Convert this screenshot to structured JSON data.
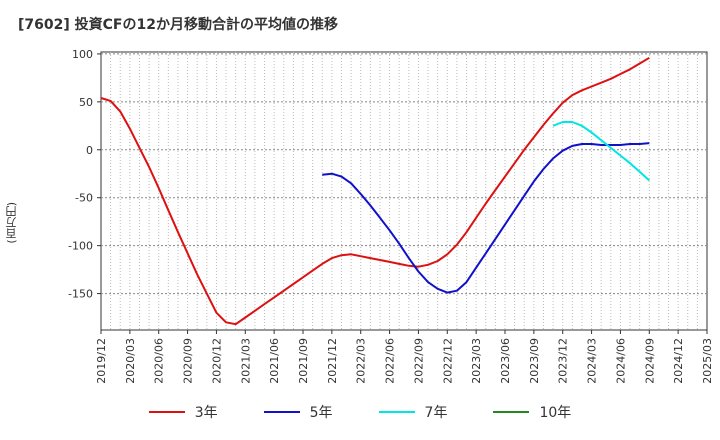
{
  "header": {
    "title": "[7602]  投資CFの12か月移動合計の平均値の推移"
  },
  "axis": {
    "y_unit": "(百万円)"
  },
  "colors": {
    "grid": "#bbbbbb",
    "axis": "#333333"
  },
  "chart_data": {
    "type": "line",
    "title": "[7602]  投資CFの12か月移動合計の平均値の推移",
    "ylabel": "(百万円)",
    "xlabel": "",
    "ylim": [
      -188,
      102
    ],
    "yticks": [
      100,
      50,
      0,
      -50,
      -100,
      -150
    ],
    "x_range": [
      "2019-12",
      "2025-03"
    ],
    "xticks": [
      "2019/12",
      "2020/03",
      "2020/06",
      "2020/09",
      "2020/12",
      "2021/03",
      "2021/06",
      "2021/09",
      "2021/12",
      "2022/03",
      "2022/06",
      "2022/09",
      "2022/12",
      "2023/03",
      "2023/06",
      "2023/09",
      "2023/12",
      "2024/03",
      "2024/06",
      "2024/09",
      "2024/12",
      "2025/03"
    ],
    "grid": "dotted, vertical every month, horizontal at y ticks",
    "legend_position": "bottom",
    "series": [
      {
        "name": "3年",
        "color": "#dd1111",
        "points": [
          [
            "2019-12",
            54
          ],
          [
            "2020-01",
            51
          ],
          [
            "2020-02",
            40
          ],
          [
            "2020-03",
            22
          ],
          [
            "2020-04",
            2
          ],
          [
            "2020-05",
            -18
          ],
          [
            "2020-06",
            -40
          ],
          [
            "2020-07",
            -63
          ],
          [
            "2020-08",
            -86
          ],
          [
            "2020-09",
            -108
          ],
          [
            "2020-10",
            -130
          ],
          [
            "2020-11",
            -150
          ],
          [
            "2020-12",
            -170
          ],
          [
            "2021-01",
            -180
          ],
          [
            "2021-02",
            -182
          ],
          [
            "2021-03",
            -175
          ],
          [
            "2021-04",
            -168
          ],
          [
            "2021-05",
            -161
          ],
          [
            "2021-06",
            -154
          ],
          [
            "2021-07",
            -147
          ],
          [
            "2021-08",
            -140
          ],
          [
            "2021-09",
            -133
          ],
          [
            "2021-10",
            -126
          ],
          [
            "2021-11",
            -119
          ],
          [
            "2021-12",
            -113
          ],
          [
            "2022-01",
            -110
          ],
          [
            "2022-02",
            -109
          ],
          [
            "2022-03",
            -111
          ],
          [
            "2022-04",
            -113
          ],
          [
            "2022-05",
            -115
          ],
          [
            "2022-06",
            -117
          ],
          [
            "2022-07",
            -119
          ],
          [
            "2022-08",
            -121
          ],
          [
            "2022-09",
            -122
          ],
          [
            "2022-10",
            -120
          ],
          [
            "2022-11",
            -116
          ],
          [
            "2022-12",
            -109
          ],
          [
            "2023-01",
            -99
          ],
          [
            "2023-02",
            -86
          ],
          [
            "2023-03",
            -71
          ],
          [
            "2023-04",
            -56
          ],
          [
            "2023-05",
            -42
          ],
          [
            "2023-06",
            -28
          ],
          [
            "2023-07",
            -14
          ],
          [
            "2023-08",
            0
          ],
          [
            "2023-09",
            13
          ],
          [
            "2023-10",
            26
          ],
          [
            "2023-11",
            38
          ],
          [
            "2023-12",
            49
          ],
          [
            "2024-01",
            57
          ],
          [
            "2024-02",
            62
          ],
          [
            "2024-03",
            66
          ],
          [
            "2024-04",
            70
          ],
          [
            "2024-05",
            74
          ],
          [
            "2024-06",
            79
          ],
          [
            "2024-07",
            84
          ],
          [
            "2024-08",
            90
          ],
          [
            "2024-09",
            96
          ]
        ]
      },
      {
        "name": "5年",
        "color": "#1111cc",
        "points": [
          [
            "2021-11",
            -26
          ],
          [
            "2021-12",
            -25
          ],
          [
            "2022-01",
            -28
          ],
          [
            "2022-02",
            -35
          ],
          [
            "2022-03",
            -46
          ],
          [
            "2022-04",
            -58
          ],
          [
            "2022-05",
            -71
          ],
          [
            "2022-06",
            -84
          ],
          [
            "2022-07",
            -98
          ],
          [
            "2022-08",
            -113
          ],
          [
            "2022-09",
            -127
          ],
          [
            "2022-10",
            -138
          ],
          [
            "2022-11",
            -145
          ],
          [
            "2022-12",
            -149
          ],
          [
            "2023-01",
            -147
          ],
          [
            "2023-02",
            -138
          ],
          [
            "2023-03",
            -123
          ],
          [
            "2023-04",
            -108
          ],
          [
            "2023-05",
            -93
          ],
          [
            "2023-06",
            -78
          ],
          [
            "2023-07",
            -63
          ],
          [
            "2023-08",
            -48
          ],
          [
            "2023-09",
            -33
          ],
          [
            "2023-10",
            -20
          ],
          [
            "2023-11",
            -9
          ],
          [
            "2023-12",
            -1
          ],
          [
            "2024-01",
            4
          ],
          [
            "2024-02",
            6
          ],
          [
            "2024-03",
            6
          ],
          [
            "2024-04",
            5
          ],
          [
            "2024-05",
            5
          ],
          [
            "2024-06",
            5
          ],
          [
            "2024-07",
            6
          ],
          [
            "2024-08",
            6
          ],
          [
            "2024-09",
            7
          ]
        ]
      },
      {
        "name": "7年",
        "color": "#00e5e5",
        "points": [
          [
            "2023-11",
            25
          ],
          [
            "2023-12",
            29
          ],
          [
            "2024-01",
            29
          ],
          [
            "2024-02",
            25
          ],
          [
            "2024-03",
            18
          ],
          [
            "2024-04",
            10
          ],
          [
            "2024-05",
            2
          ],
          [
            "2024-06",
            -6
          ],
          [
            "2024-07",
            -14
          ],
          [
            "2024-08",
            -23
          ],
          [
            "2024-09",
            -32
          ]
        ]
      },
      {
        "name": "10年",
        "color": "#228822",
        "points": []
      }
    ]
  }
}
